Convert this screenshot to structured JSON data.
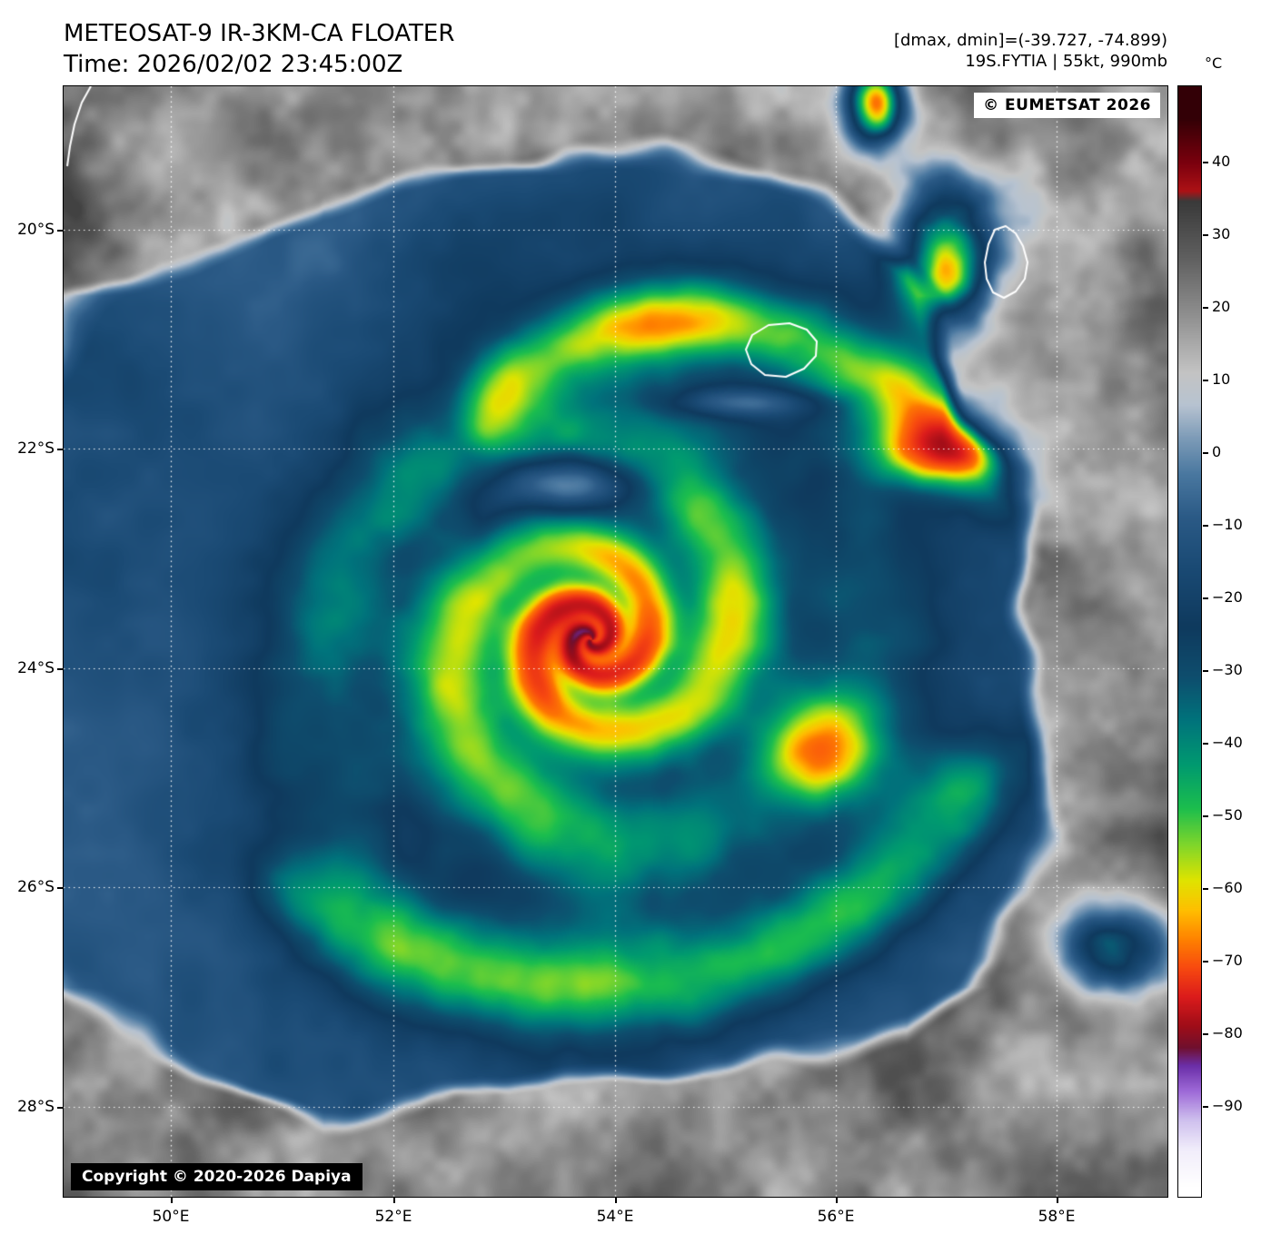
{
  "header": {
    "title": "METEOSAT-9 IR-3KM-CA FLOATER",
    "time_line": "Time: 2026/02/02 23:45:00Z",
    "dmax_dmin": "[dmax, dmin]=(-39.727, -74.899)",
    "storm_info": "19S.FYTIA | 55kt, 990mb"
  },
  "map": {
    "eumetsat_badge": "© EUMETSAT 2026",
    "copyright_badge": "Copyright © 2020-2026 Dapiya"
  },
  "axes": {
    "lat_ticks": [
      "20°S",
      "22°S",
      "24°S",
      "26°S",
      "28°S"
    ],
    "lon_ticks": [
      "50°E",
      "52°E",
      "54°E",
      "56°E",
      "58°E"
    ]
  },
  "colorbar": {
    "unit": "°C",
    "ticks": [
      "40",
      "30",
      "20",
      "10",
      "0",
      "−10",
      "−20",
      "−30",
      "−40",
      "−50",
      "−60",
      "−70",
      "−80",
      "−90"
    ],
    "range_top_c": 50.4,
    "range_bottom_c": -102.5,
    "palette_stops": [
      [
        46,
        "#330006"
      ],
      [
        40,
        "#7a000e"
      ],
      [
        36,
        "#ad1216"
      ],
      [
        34.6,
        "#3a3a3a"
      ],
      [
        27,
        "#5f5f5f"
      ],
      [
        19,
        "#8f8f8f"
      ],
      [
        11,
        "#c4c4c4"
      ],
      [
        6.5,
        "#b7c3d1"
      ],
      [
        2,
        "#7e9cb8"
      ],
      [
        -3,
        "#4a78a0"
      ],
      [
        -9,
        "#2b5a86"
      ],
      [
        -16,
        "#1a4a74"
      ],
      [
        -24,
        "#0f3a5e"
      ],
      [
        -31,
        "#0e4e6e"
      ],
      [
        -37,
        "#00747c"
      ],
      [
        -43,
        "#009a70"
      ],
      [
        -49,
        "#1cbe4e"
      ],
      [
        -54,
        "#7ed62c"
      ],
      [
        -59,
        "#e0e400"
      ],
      [
        -63,
        "#ffc000"
      ],
      [
        -67,
        "#ff8400"
      ],
      [
        -71,
        "#f84a10"
      ],
      [
        -75,
        "#dc1c1c"
      ],
      [
        -79,
        "#a00d18"
      ],
      [
        -82,
        "#70102e"
      ],
      [
        -84.5,
        "#6b2fa8"
      ],
      [
        -88,
        "#9e6ad8"
      ],
      [
        -92,
        "#cfc0ee"
      ],
      [
        -96,
        "#f1edfb"
      ],
      [
        -101,
        "#ffffff"
      ]
    ]
  }
}
